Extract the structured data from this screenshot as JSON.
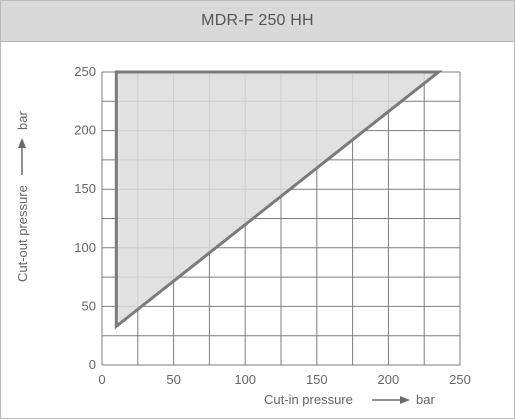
{
  "header": {
    "title": "MDR-F 250 HH"
  },
  "chart_data": {
    "type": "area",
    "title": "MDR-F 250 HH",
    "xlabel": "Cut-in pressure",
    "xunit": "bar",
    "ylabel": "Cut-out pressure",
    "yunit": "bar",
    "xlim": [
      0,
      250
    ],
    "ylim": [
      0,
      250
    ],
    "x_ticks": [
      0,
      50,
      100,
      150,
      200,
      250
    ],
    "x_tick_labels": [
      "0",
      "50",
      "100",
      "150",
      "200",
      "250"
    ],
    "y_ticks": [
      0,
      50,
      100,
      150,
      200,
      250
    ],
    "y_tick_labels": [
      "0",
      "50",
      "100",
      "150",
      "200",
      "250"
    ],
    "x_minor_step": 25,
    "y_minor_step": 25,
    "grid": true,
    "series": [
      {
        "points": [
          [
            10,
            250
          ],
          [
            235,
            250
          ],
          [
            10,
            33
          ]
        ],
        "fill": "#dcdcdc",
        "stroke": "#7a7a7a"
      }
    ]
  }
}
